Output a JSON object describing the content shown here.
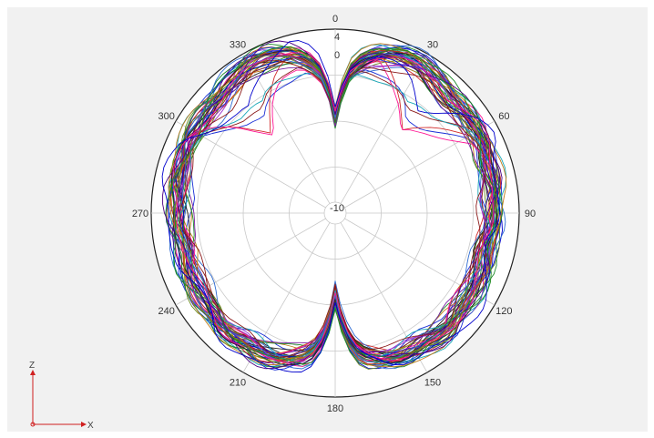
{
  "chart_data": {
    "type": "polar-line",
    "title": "",
    "angle_ticks": [
      "0",
      "30",
      "60",
      "90",
      "120",
      "150",
      "180",
      "210",
      "240",
      "270",
      "300",
      "330"
    ],
    "angle_tick_values": [
      0,
      30,
      60,
      90,
      120,
      150,
      180,
      210,
      240,
      270,
      300,
      330
    ],
    "radial_ticks": [
      "4",
      "0",
      "-10"
    ],
    "radial_tick_values": [
      4,
      0,
      -10
    ],
    "radial_range": [
      -30,
      4
    ],
    "grid": true,
    "legend": "none",
    "series_count": 46,
    "series_envelope": {
      "angles_deg": [
        0,
        5,
        10,
        15,
        20,
        25,
        30,
        35,
        40,
        45,
        50,
        55,
        60,
        65,
        70,
        75,
        80,
        85,
        90,
        95,
        100,
        105,
        110,
        115,
        120,
        125,
        130,
        135,
        140,
        145,
        150,
        155,
        160,
        165,
        170,
        175,
        180
      ],
      "typical_gain_dB": [
        -12,
        -4,
        -1,
        0.5,
        1.5,
        2,
        2,
        1.5,
        1,
        0.5,
        0.5,
        0.5,
        0.5,
        0.5,
        0,
        0,
        0,
        -0.5,
        -0.5,
        -0.5,
        -1,
        -1,
        -0.5,
        -0.5,
        -0.5,
        -0.5,
        -0.5,
        0,
        0,
        -0.5,
        -0.5,
        -0.5,
        -1,
        -2,
        -3,
        -7,
        -14
      ],
      "spread_dB": 2
    },
    "series_colors": [
      "#1a2fd6",
      "#1e8a2b",
      "#d12a2a",
      "#7a1fa0",
      "#1aa8b8",
      "#222222",
      "#c07a1a",
      "#6b8e23",
      "#2e6bd1",
      "#8b1a1a",
      "#4b0082",
      "#ff1493",
      "#228b22",
      "#0000cd",
      "#b8860b",
      "#9932cc"
    ]
  },
  "axes_indicator": {
    "vertical": "Z",
    "horizontal": "X",
    "color": "#d02020"
  }
}
